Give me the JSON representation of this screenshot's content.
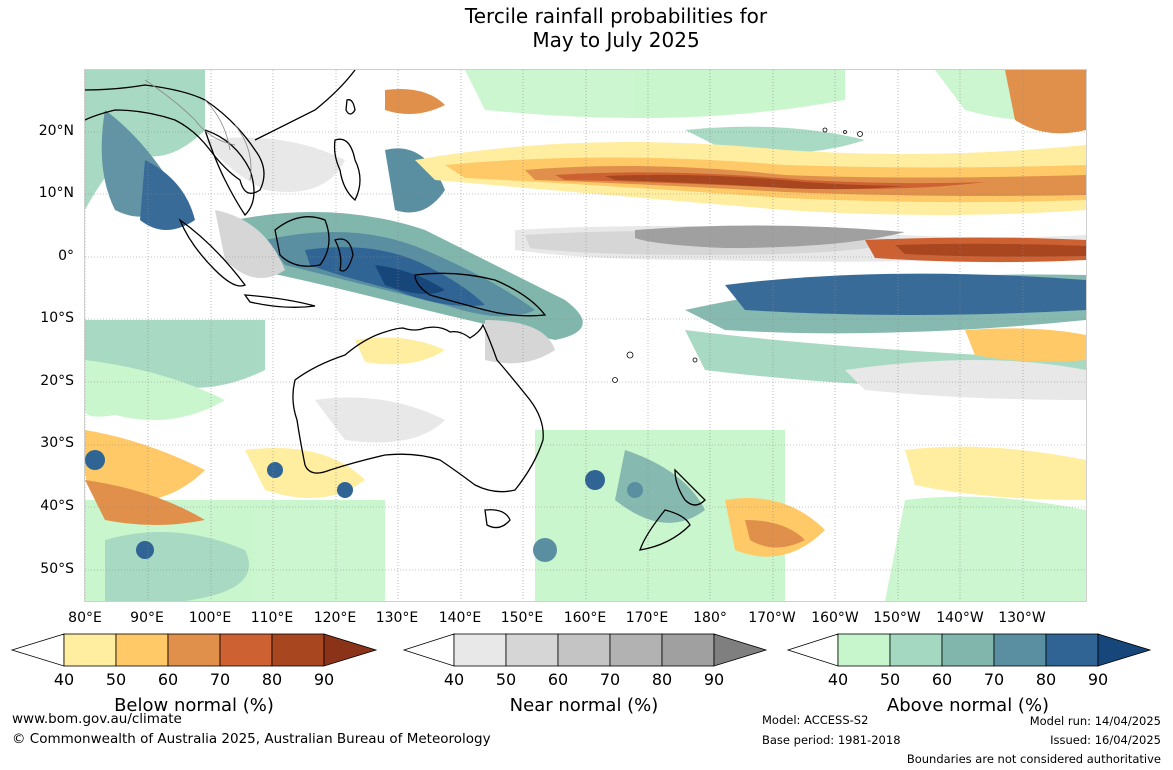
{
  "title": {
    "line1": "Tercile rainfall probabilities for",
    "line2": "May to July 2025"
  },
  "lat_labels": [
    "20°N",
    "10°N",
    "0°",
    "10°S",
    "20°S",
    "30°S",
    "40°S",
    "50°S"
  ],
  "lon_labels": [
    "80°E",
    "90°E",
    "100°E",
    "110°E",
    "120°E",
    "130°E",
    "140°E",
    "150°E",
    "160°E",
    "170°E",
    "180°",
    "170°W",
    "160°W",
    "150°W",
    "140°W",
    "130°W"
  ],
  "legends": [
    {
      "title": "Below normal (%)",
      "ticks": [
        "40",
        "50",
        "60",
        "70",
        "80",
        "90"
      ],
      "colors": [
        "#ffeda0",
        "#fec966",
        "#e0904a",
        "#cd6132",
        "#a8461f",
        "#8b3319"
      ]
    },
    {
      "title": "Near normal (%)",
      "ticks": [
        "40",
        "50",
        "60",
        "70",
        "80",
        "90"
      ],
      "colors": [
        "#e8e8e8",
        "#d6d6d6",
        "#c4c4c4",
        "#b2b2b2",
        "#a0a0a0",
        "#7f7f7f"
      ]
    },
    {
      "title": "Above normal (%)",
      "ticks": [
        "40",
        "50",
        "60",
        "70",
        "80",
        "90"
      ],
      "colors": [
        "#c8f6cc",
        "#a4d8c0",
        "#80b6ac",
        "#5a8fa1",
        "#2f6494",
        "#17467b"
      ]
    }
  ],
  "footer": {
    "website": "www.bom.gov.au/climate",
    "copyright": "© Commonwealth of Australia 2025, Australian Bureau of Meteorology",
    "model": "Model: ACCESS-S2",
    "base_period": "Base period: 1981-2018",
    "model_run": "Model run: 14/04/2025",
    "issued": "Issued: 16/04/2025",
    "disclaimer": "Boundaries are not considered authoritative"
  }
}
